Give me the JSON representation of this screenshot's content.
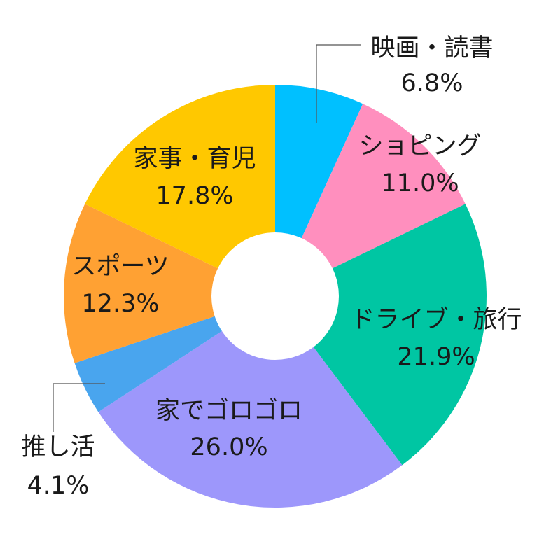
{
  "chart_data": {
    "type": "pie",
    "donut": true,
    "title": "",
    "unit": "%",
    "slices": [
      {
        "name": "映画・読書",
        "value": 6.8,
        "label": "6.8%",
        "color": "#00c0ff"
      },
      {
        "name": "ショピング",
        "value": 11.0,
        "label": "11.0%",
        "color": "#ff8fbe"
      },
      {
        "name": "ドライブ・旅行",
        "value": 21.9,
        "label": "21.9%",
        "color": "#00c6a3"
      },
      {
        "name": "家でゴロゴロ",
        "value": 26.0,
        "label": "26.0%",
        "color": "#9d97fb"
      },
      {
        "name": "推し活",
        "value": 4.1,
        "label": "4.1%",
        "color": "#49a5ee"
      },
      {
        "name": "スポーツ",
        "value": 12.3,
        "label": "12.3%",
        "color": "#ffa133"
      },
      {
        "name": "家事・育児",
        "value": 17.8,
        "label": "17.8%",
        "color": "#ffc800"
      }
    ],
    "legend": "none"
  }
}
